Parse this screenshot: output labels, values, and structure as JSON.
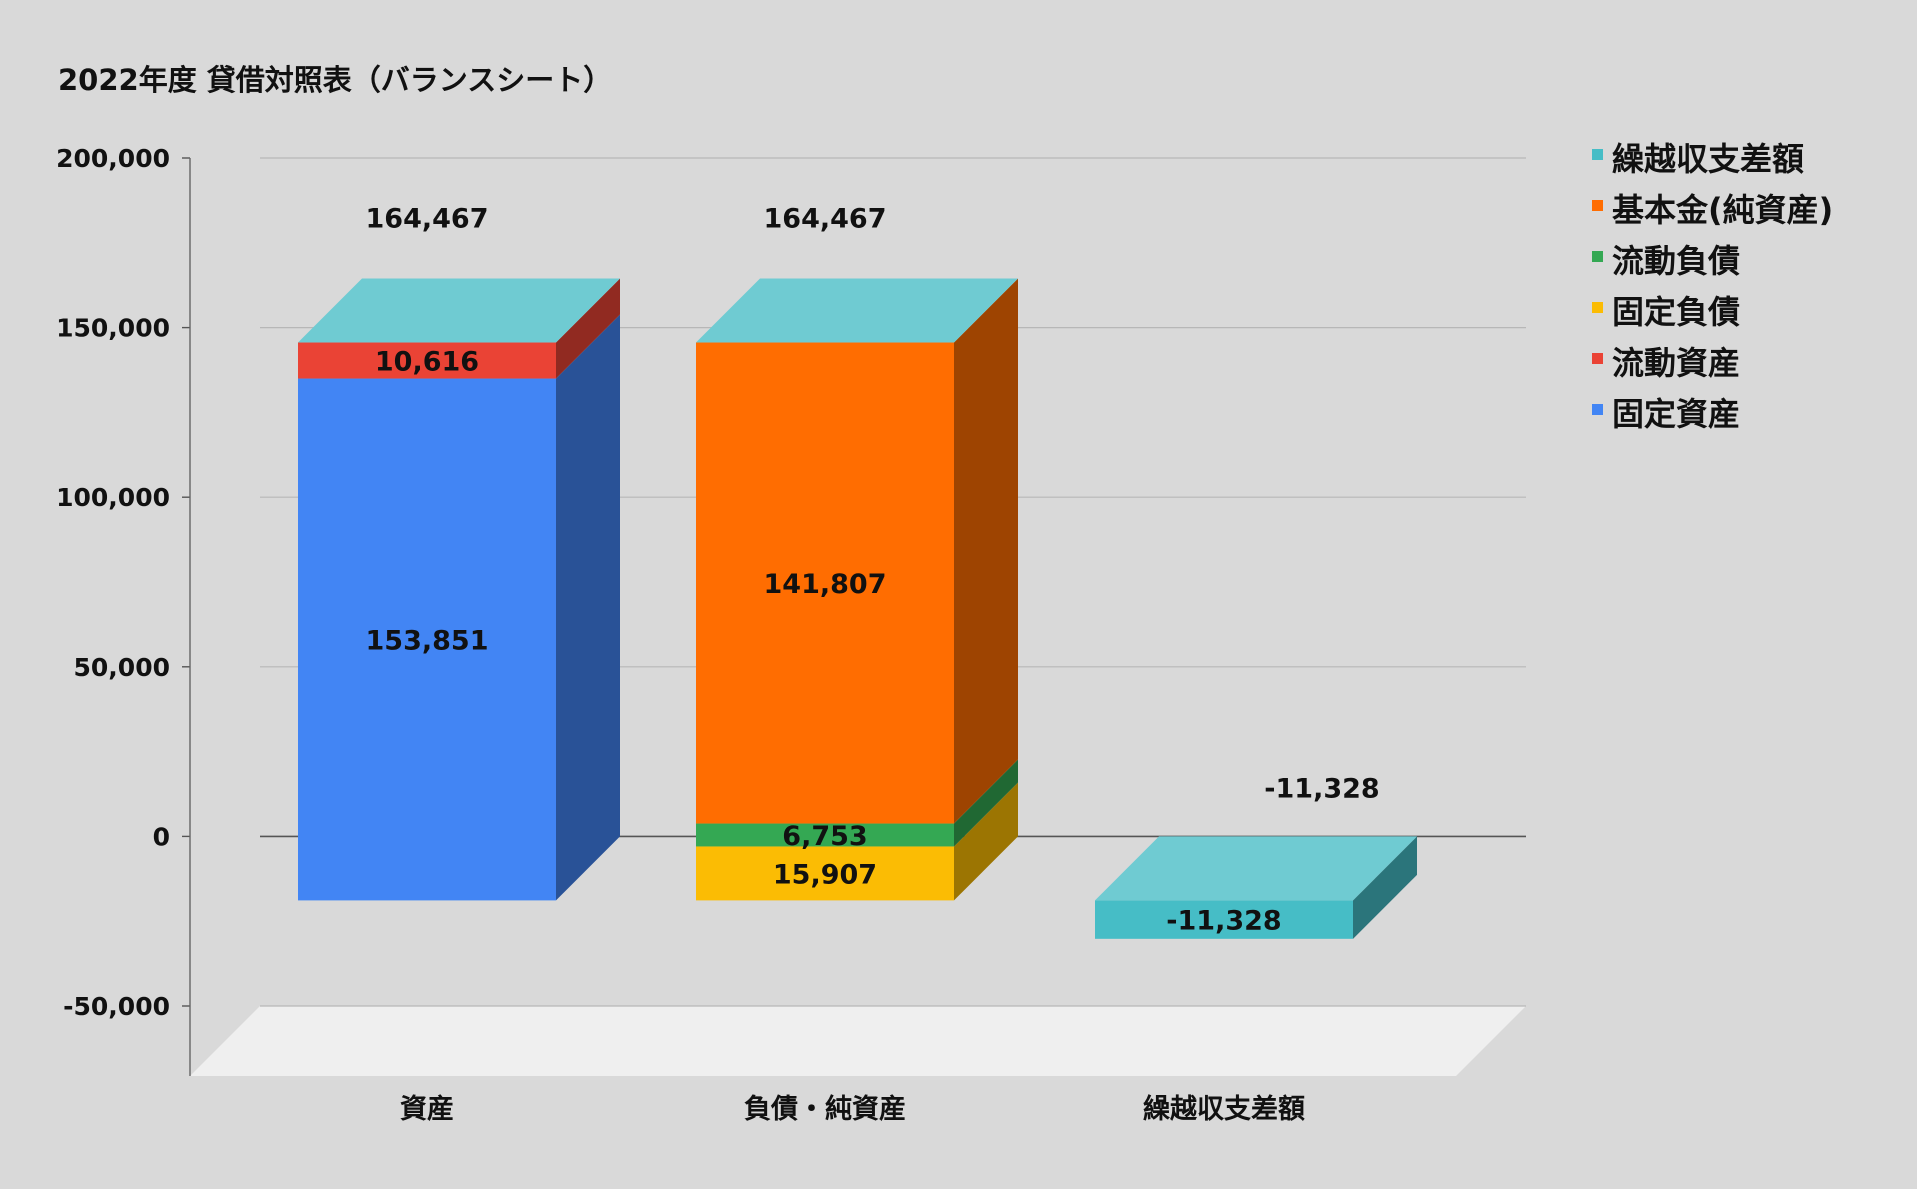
{
  "chart_data": {
    "type": "bar",
    "stacked": true,
    "three_d": true,
    "title": "2022年度 貸借対照表（バランスシート）",
    "xlabel": "",
    "ylabel": "",
    "ylim": [
      -50000,
      200000
    ],
    "y_ticks": [
      200000,
      150000,
      100000,
      50000,
      0,
      -50000
    ],
    "y_tick_labels": [
      "200,000",
      "150,000",
      "100,000",
      "50,000",
      "0",
      "-50,000"
    ],
    "grid": true,
    "legend_position": "right",
    "categories": [
      "資産",
      "負債・純資産",
      "繰越収支差額"
    ],
    "series": [
      {
        "name": "固定資産",
        "color": "#4285f4",
        "values": [
          153851,
          null,
          null
        ],
        "labels": [
          "153,851",
          "",
          ""
        ]
      },
      {
        "name": "流動資産",
        "color": "#ea4335",
        "values": [
          10616,
          null,
          null
        ],
        "labels": [
          "10,616",
          "",
          ""
        ]
      },
      {
        "name": "固定負債",
        "color": "#fbbc04",
        "values": [
          null,
          15907,
          null
        ],
        "labels": [
          "",
          "15,907",
          ""
        ]
      },
      {
        "name": "流動負債",
        "color": "#34a853",
        "values": [
          null,
          6753,
          null
        ],
        "labels": [
          "",
          "6,753",
          ""
        ]
      },
      {
        "name": "基本金(純資産)",
        "color": "#ff6d01",
        "values": [
          null,
          141807,
          null
        ],
        "labels": [
          "",
          "141,807",
          ""
        ]
      },
      {
        "name": "繰越収支差額",
        "color": "#46bdc6",
        "values": [
          null,
          null,
          -11328
        ],
        "labels": [
          "",
          "",
          "-11,328"
        ]
      }
    ],
    "legend_order": [
      "繰越収支差額",
      "基本金(純資産)",
      "流動負債",
      "固定負債",
      "流動資産",
      "固定資産"
    ],
    "totals": [
      {
        "category": "資産",
        "value": 164467,
        "label": "164,467"
      },
      {
        "category": "負債・純資産",
        "value": 164467,
        "label": "164,467"
      },
      {
        "category": "繰越収支差額",
        "value": -11328,
        "label": "-11,328"
      }
    ],
    "top_color": "#6fcbd2",
    "floor_color": "#efefef",
    "grid_color": "#b7b7b7"
  }
}
